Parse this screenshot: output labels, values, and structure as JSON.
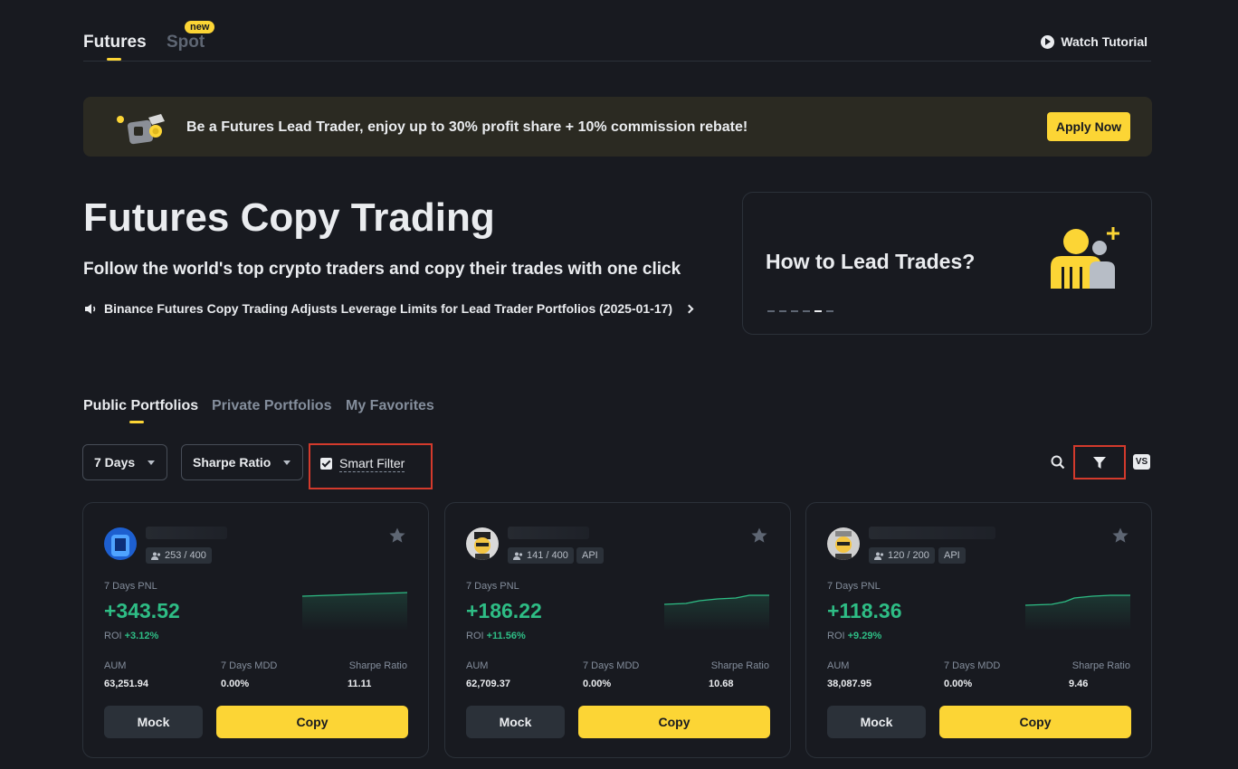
{
  "nav": {
    "futures_label": "Futures",
    "spot_label": "Spot",
    "spot_badge": "new",
    "watch_tutorial": "Watch Tutorial"
  },
  "banner": {
    "text": "Be a Futures Lead Trader, enjoy up to 30% profit share + 10% commission rebate!",
    "apply_label": "Apply Now"
  },
  "hero": {
    "title": "Futures Copy Trading",
    "subtitle": "Follow the world's top crypto traders and copy their trades with one click",
    "announcement": "Binance Futures Copy Trading Adjusts Leverage Limits for Lead Trader Portfolios (2025-01-17)"
  },
  "howto": {
    "title": "How to Lead Trades?",
    "carousel_slides": 6,
    "carousel_active_index": 4
  },
  "portfolio_tabs": [
    "Public Portfolios",
    "Private Portfolios",
    "My Favorites"
  ],
  "filters": {
    "period": "7 Days",
    "sort": "Sharpe Ratio",
    "smart_filter_label": "Smart Filter",
    "smart_filter_checked": true,
    "vs_label": "VS"
  },
  "colors": {
    "accent": "#fcd535",
    "positive": "#2ebd85",
    "highlight_border": "#d33a2c"
  },
  "cards": [
    {
      "followers": "253 / 400",
      "api": "",
      "pnl_label": "7 Days PNL",
      "pnl": "+343.52",
      "roi_label": "ROI",
      "roi": "+3.12%",
      "aum_label": "AUM",
      "aum": "63,251.94",
      "mdd_label": "7 Days MDD",
      "mdd": "0.00%",
      "sharpe_label": "Sharpe Ratio",
      "sharpe": "11.11",
      "mock_label": "Mock",
      "copy_label": "Copy"
    },
    {
      "followers": "141 / 400",
      "api": "API",
      "pnl_label": "7 Days PNL",
      "pnl": "+186.22",
      "roi_label": "ROI",
      "roi": "+11.56%",
      "aum_label": "AUM",
      "aum": "62,709.37",
      "mdd_label": "7 Days MDD",
      "mdd": "0.00%",
      "sharpe_label": "Sharpe Ratio",
      "sharpe": "10.68",
      "mock_label": "Mock",
      "copy_label": "Copy"
    },
    {
      "followers": "120 / 200",
      "api": "API",
      "pnl_label": "7 Days PNL",
      "pnl": "+118.36",
      "roi_label": "ROI",
      "roi": "+9.29%",
      "aum_label": "AUM",
      "aum": "38,087.95",
      "mdd_label": "7 Days MDD",
      "mdd": "0.00%",
      "sharpe_label": "Sharpe Ratio",
      "sharpe": "9.46",
      "mock_label": "Mock",
      "copy_label": "Copy"
    }
  ]
}
